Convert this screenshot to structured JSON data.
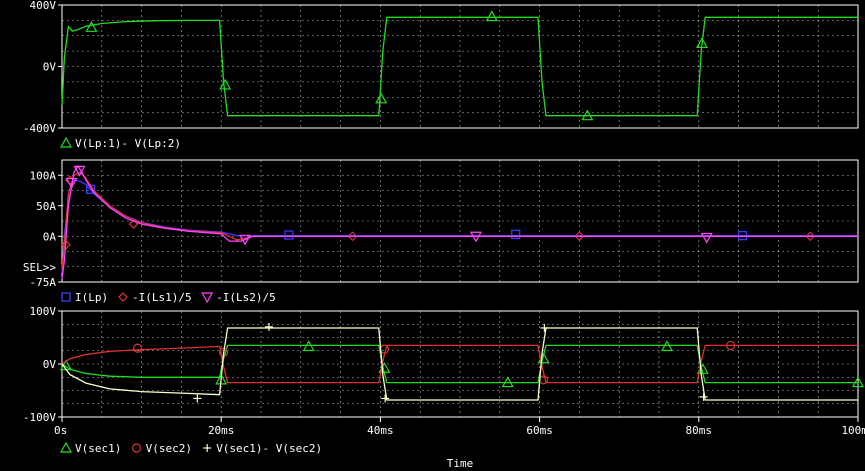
{
  "colors": {
    "background": "#000000",
    "frame": "#ffffff",
    "grid": "#ffffff",
    "text": "#ffffff",
    "green": "#22dd22",
    "blue": "#3a3aff",
    "red": "#dd3333",
    "magenta": "#ff44ff",
    "white_trace": "#ffffcc"
  },
  "chart_data": [
    {
      "type": "line",
      "panel": "top",
      "ylim": [
        -400,
        400
      ],
      "yticks": [
        {
          "v": 400,
          "label": "400V"
        },
        {
          "v": 0,
          "label": "0V"
        },
        {
          "v": -400,
          "label": "-400V"
        }
      ],
      "legend": [
        {
          "name": "V(Lp:1)- V(Lp:2)",
          "marker": "triangle",
          "color": "green"
        }
      ],
      "series": [
        {
          "name": "V(Lp:1)- V(Lp:2)",
          "color": "green",
          "marker": "triangle",
          "x": [
            0,
            0.3,
            0.8,
            1.3,
            2,
            3,
            5,
            8,
            12,
            16,
            19.8,
            20.3,
            20.8,
            25,
            39.8,
            40.3,
            40.8,
            45,
            59.8,
            60.3,
            60.8,
            65,
            79.8,
            80.3,
            80.8,
            85,
            100
          ],
          "y": [
            -250,
            60,
            260,
            230,
            240,
            262,
            280,
            292,
            298,
            300,
            300,
            -100,
            -320,
            -320,
            -320,
            100,
            320,
            320,
            320,
            -100,
            -320,
            -320,
            -320,
            100,
            320,
            320,
            320
          ],
          "markers": [
            [
              3.7,
              255
            ],
            [
              20.5,
              -120
            ],
            [
              40.1,
              -210
            ],
            [
              54,
              325
            ],
            [
              66,
              -320
            ],
            [
              80.4,
              150
            ]
          ]
        }
      ]
    },
    {
      "type": "line",
      "panel": "middle",
      "ylim": [
        -75,
        125
      ],
      "yticks": [
        {
          "v": 100,
          "label": "100A"
        },
        {
          "v": 50,
          "label": "50A"
        },
        {
          "v": 0,
          "label": "0A"
        },
        {
          "v": -75,
          "label": "-75A"
        }
      ],
      "sel_label": "SEL>>",
      "legend": [
        {
          "name": "I(Lp)",
          "marker": "square",
          "color": "blue"
        },
        {
          "name": "-I(Ls1)/5",
          "marker": "diamond",
          "color": "red"
        },
        {
          "name": "-I(Ls2)/5",
          "marker": "triangle-down",
          "color": "magenta"
        }
      ],
      "series": [
        {
          "name": "I(Lp)",
          "color": "blue",
          "marker": "square",
          "x": [
            0,
            0.3,
            0.8,
            1.5,
            2.3,
            3,
            4,
            6,
            8,
            10,
            13,
            16,
            20,
            22,
            24,
            30,
            40,
            60,
            80,
            100
          ],
          "y": [
            -60,
            0,
            60,
            92,
            90,
            85,
            70,
            48,
            33,
            23,
            15,
            10,
            7,
            1,
            1,
            1,
            1,
            1,
            1,
            1
          ],
          "markers": [
            [
              3.6,
              77
            ],
            [
              28.5,
              2
            ],
            [
              57,
              3
            ],
            [
              85.5,
              1
            ]
          ]
        },
        {
          "name": "-I(Ls1)/5",
          "color": "red",
          "marker": "diamond",
          "x": [
            0,
            0.3,
            0.8,
            1.5,
            2.3,
            3,
            4,
            6,
            8,
            10,
            13,
            16,
            20,
            22,
            24,
            30,
            40,
            60,
            80,
            100
          ],
          "y": [
            -55,
            -10,
            70,
            100,
            105,
            95,
            75,
            50,
            33,
            22,
            14,
            9,
            6,
            -6,
            0,
            0,
            0,
            0,
            0,
            0
          ],
          "markers": [
            [
              0.5,
              -14
            ],
            [
              1,
              92
            ],
            [
              9,
              20
            ],
            [
              36.5,
              0
            ],
            [
              65,
              0
            ],
            [
              94,
              0
            ]
          ]
        },
        {
          "name": "-I(Ls2)/5",
          "color": "magenta",
          "marker": "triangle-down",
          "x": [
            0,
            0.3,
            0.8,
            1.5,
            2,
            2.5,
            3,
            4,
            6,
            8,
            10,
            13,
            16,
            20,
            21,
            22.5,
            24,
            30,
            40,
            60,
            80,
            100
          ],
          "y": [
            -70,
            -40,
            50,
            105,
            115,
            105,
            92,
            72,
            47,
            30,
            20,
            13,
            8,
            4,
            -8,
            -8,
            0,
            0,
            0,
            0,
            0,
            0
          ],
          "markers": [
            [
              1.2,
              88
            ],
            [
              2.2,
              108
            ],
            [
              23,
              -5
            ],
            [
              52,
              0
            ],
            [
              81,
              -2
            ]
          ]
        }
      ]
    },
    {
      "type": "line",
      "panel": "bottom",
      "ylim": [
        -100,
        100
      ],
      "xlim": [
        0,
        100
      ],
      "xticks": [
        {
          "v": 0,
          "label": "0s"
        },
        {
          "v": 20,
          "label": "20ms"
        },
        {
          "v": 40,
          "label": "40ms"
        },
        {
          "v": 60,
          "label": "60ms"
        },
        {
          "v": 80,
          "label": "80ms"
        },
        {
          "v": 100,
          "label": "100ms"
        }
      ],
      "xlabel": "Time",
      "yticks": [
        {
          "v": 100,
          "label": "100V"
        },
        {
          "v": 0,
          "label": "0V"
        },
        {
          "v": -100,
          "label": "-100V"
        }
      ],
      "legend": [
        {
          "name": "V(sec1)",
          "marker": "triangle",
          "color": "green"
        },
        {
          "name": "V(sec2)",
          "marker": "circle",
          "color": "red"
        },
        {
          "name": "V(sec1)- V(sec2)",
          "marker": "plus",
          "color": "white_trace"
        }
      ],
      "series": [
        {
          "name": "V(sec1)",
          "color": "green",
          "marker": "triangle",
          "x": [
            0,
            1,
            3,
            6,
            10,
            15,
            19.8,
            20.3,
            20.8,
            25,
            39.8,
            40.3,
            40.8,
            45,
            59.8,
            60.3,
            60.8,
            65,
            79.8,
            80.3,
            80.8,
            85,
            100
          ],
          "y": [
            0,
            -10,
            -18,
            -23,
            -25,
            -25,
            -25,
            10,
            35,
            35,
            35,
            -5,
            -35,
            -35,
            -35,
            5,
            35,
            35,
            35,
            -5,
            -35,
            -35,
            -35
          ],
          "markers": [
            [
              0.5,
              -3
            ],
            [
              20,
              -30
            ],
            [
              31,
              33
            ],
            [
              40.5,
              -8
            ],
            [
              56,
              -35
            ],
            [
              60.5,
              10
            ],
            [
              76,
              33
            ],
            [
              80.5,
              -10
            ],
            [
              100,
              -35
            ]
          ]
        },
        {
          "name": "V(sec2)",
          "color": "red",
          "marker": "circle",
          "x": [
            0,
            1,
            3,
            6,
            10,
            15,
            19.8,
            20.3,
            20.8,
            25,
            39.8,
            40.3,
            40.8,
            45,
            59.8,
            60.3,
            60.8,
            65,
            79.8,
            80.3,
            80.8,
            85,
            100
          ],
          "y": [
            0,
            10,
            18,
            24,
            27,
            30,
            33,
            -5,
            -35,
            -35,
            -35,
            5,
            35,
            35,
            35,
            -5,
            -35,
            -35,
            -35,
            5,
            35,
            35,
            35
          ],
          "markers": [
            [
              9.5,
              30
            ],
            [
              20.3,
              22
            ],
            [
              40.5,
              28
            ],
            [
              60.5,
              -30
            ],
            [
              84,
              35
            ]
          ]
        },
        {
          "name": "V(sec1)- V(sec2)",
          "color": "white_trace",
          "marker": "plus",
          "x": [
            0,
            1,
            3,
            6,
            10,
            15,
            19.8,
            20.3,
            20.8,
            25,
            39.8,
            40.3,
            40.8,
            45,
            59.8,
            60.3,
            60.8,
            65,
            79.8,
            80.3,
            80.8,
            85,
            100
          ],
          "y": [
            0,
            -20,
            -36,
            -47,
            -52,
            -55,
            -58,
            20,
            68,
            68,
            68,
            -20,
            -68,
            -68,
            -68,
            20,
            68,
            68,
            68,
            -20,
            -68,
            -68,
            -68
          ],
          "markers": [
            [
              17,
              -65
            ],
            [
              26,
              70
            ],
            [
              40.6,
              -65
            ],
            [
              60.6,
              68
            ],
            [
              80.6,
              -62
            ]
          ]
        }
      ]
    }
  ]
}
